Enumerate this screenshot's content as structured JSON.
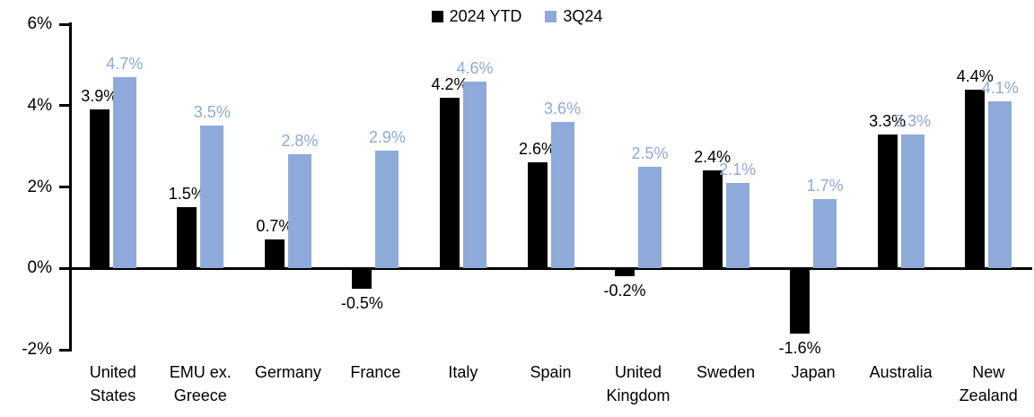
{
  "chart_data": {
    "type": "bar",
    "title": "",
    "categories": [
      "United States",
      "EMU ex. Greece",
      "Germany",
      "France",
      "Italy",
      "Spain",
      "United Kingdom",
      "Sweden",
      "Japan",
      "Australia",
      "New Zealand"
    ],
    "category_label_lines": [
      [
        "United",
        "States"
      ],
      [
        "EMU ex.",
        "Greece"
      ],
      [
        "Germany"
      ],
      [
        "France"
      ],
      [
        "Italy"
      ],
      [
        "Spain"
      ],
      [
        "United",
        "Kingdom"
      ],
      [
        "Sweden"
      ],
      [
        "Japan"
      ],
      [
        "Australia"
      ],
      [
        "New",
        "Zealand"
      ]
    ],
    "series": [
      {
        "name": "2024 YTD",
        "color": "#000000",
        "values": [
          3.9,
          1.5,
          0.7,
          -0.5,
          4.2,
          2.6,
          -0.2,
          2.4,
          -1.6,
          3.3,
          4.4
        ],
        "labels": [
          "3.9%",
          "1.5%",
          "0.7%",
          "-0.5%",
          "4.2%",
          "2.6%",
          "-0.2%",
          "2.4%",
          "-1.6%",
          "3.3%",
          "4.4%"
        ]
      },
      {
        "name": "3Q24",
        "color": "#8EAADB",
        "values": [
          4.7,
          3.5,
          2.8,
          2.9,
          4.6,
          3.6,
          2.5,
          2.1,
          1.7,
          3.3,
          4.1
        ],
        "labels": [
          "4.7%",
          "3.5%",
          "2.8%",
          "2.9%",
          "4.6%",
          "3.6%",
          "2.5%",
          "2.1%",
          "1.7%",
          "3.3%",
          "4.1%"
        ]
      }
    ],
    "ylim": [
      -2,
      6
    ],
    "yticks": [
      {
        "value": 6,
        "label": "6%"
      },
      {
        "value": 4,
        "label": "4%"
      },
      {
        "value": 2,
        "label": "2%"
      },
      {
        "value": 0,
        "label": "0%"
      },
      {
        "value": -2,
        "label": "-2%"
      }
    ],
    "xlabel": "",
    "ylabel": "",
    "grid": false,
    "legend_position": "top",
    "axis_color": "#000000",
    "background": "#FFFFFF"
  }
}
